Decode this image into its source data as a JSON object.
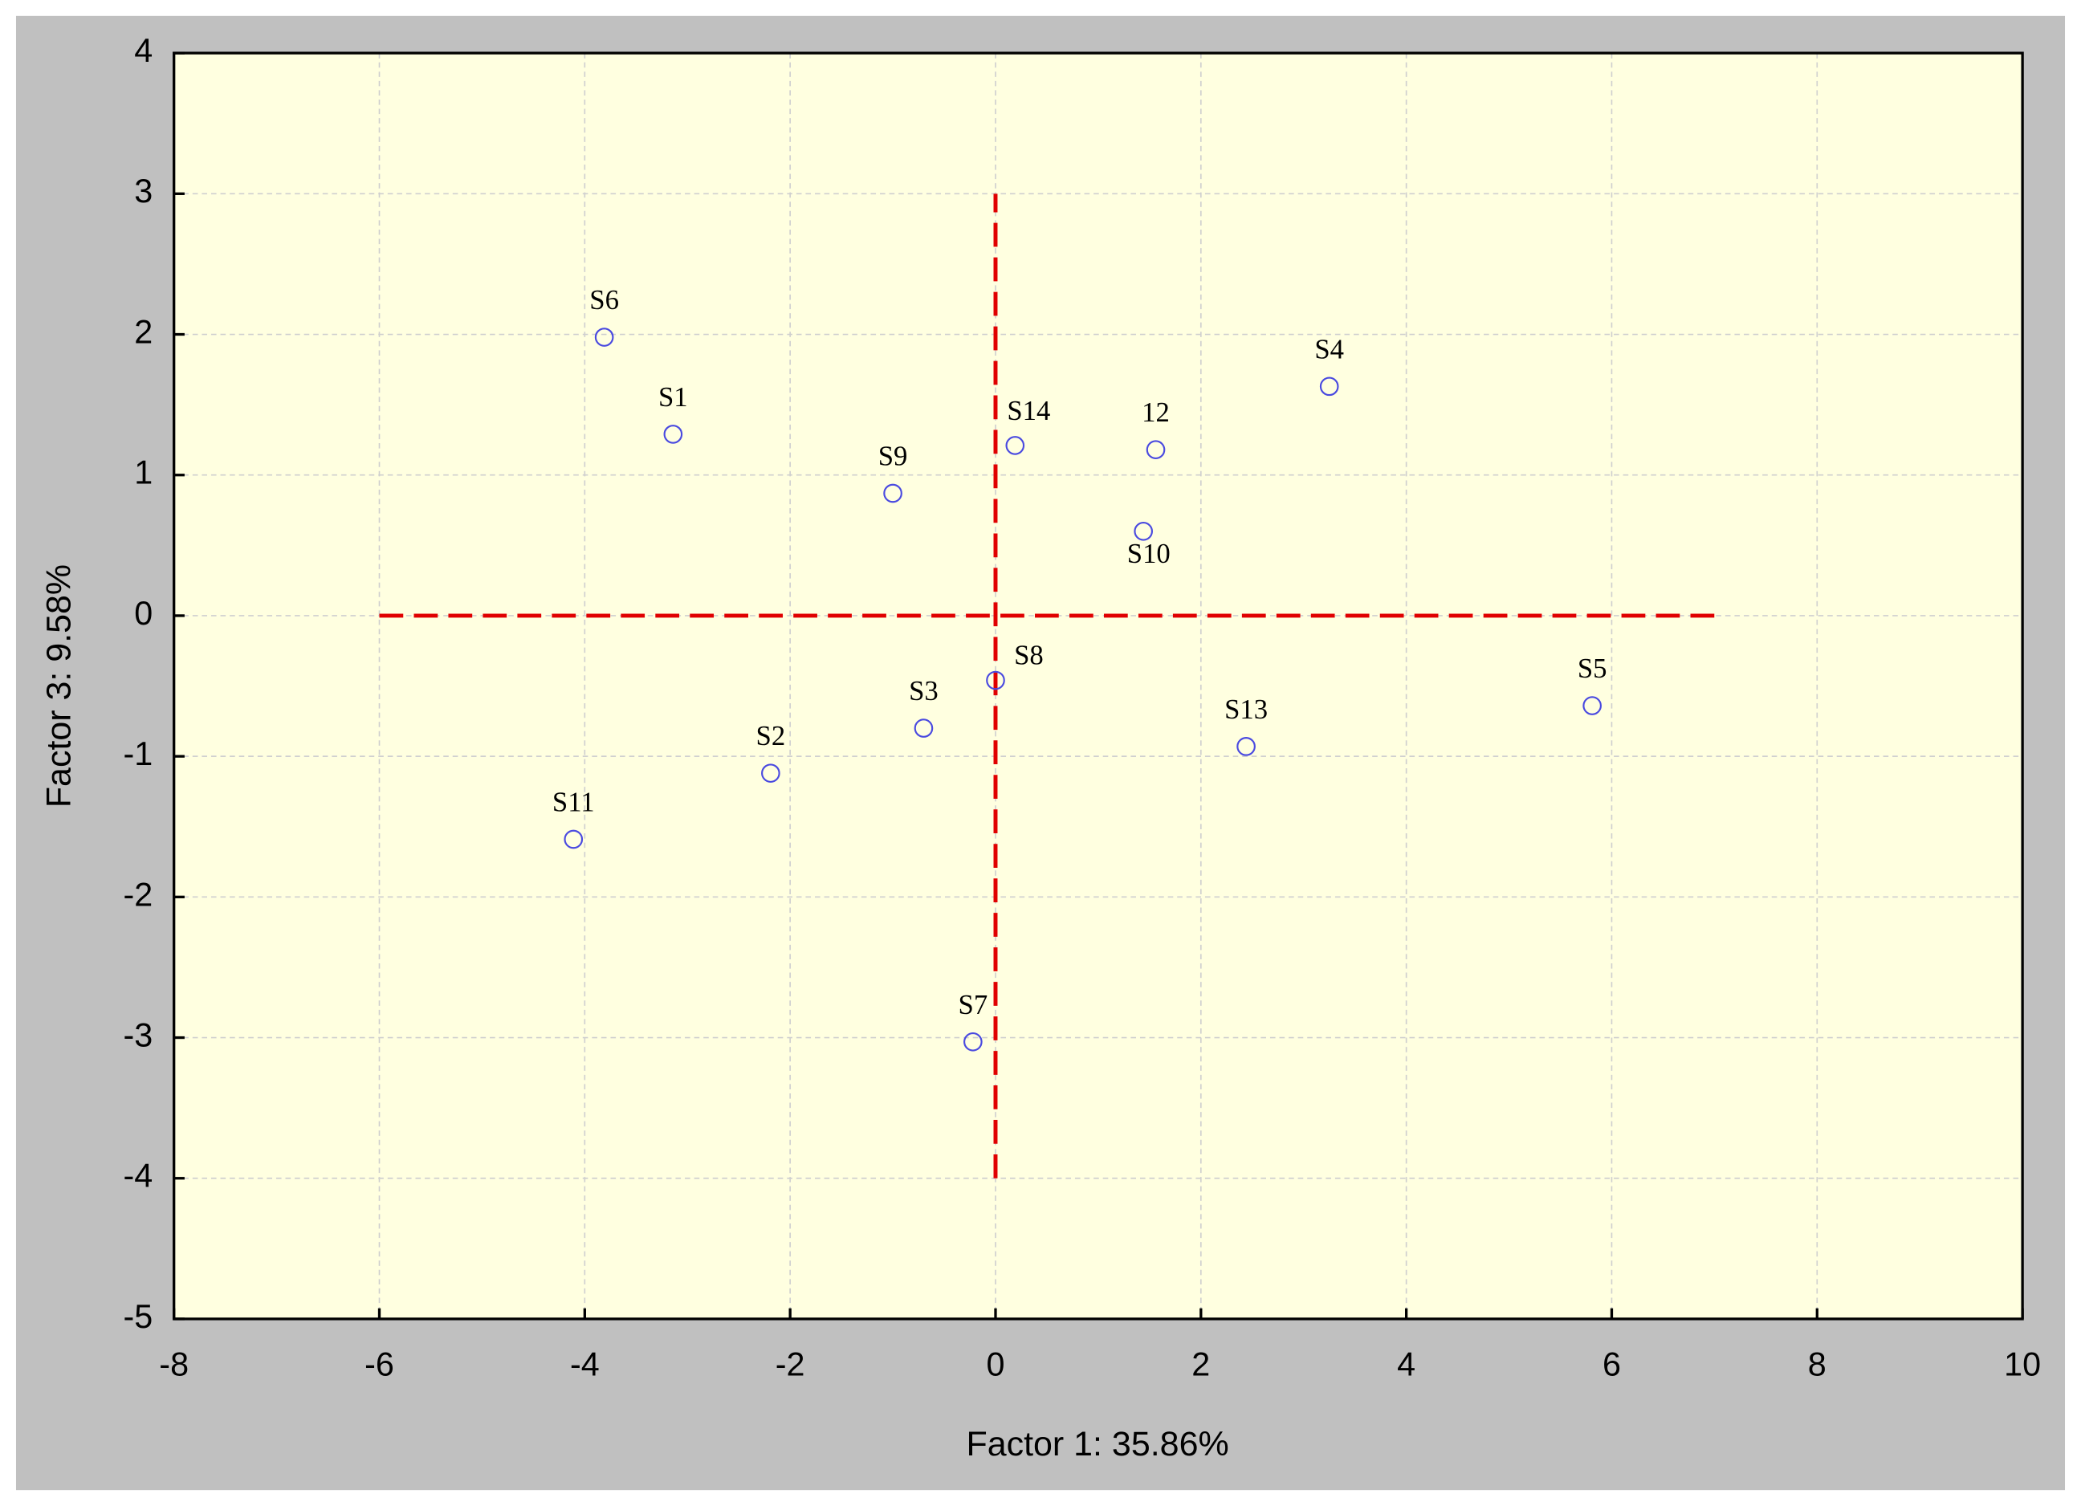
{
  "chart_data": {
    "type": "scatter",
    "x_label": "Factor 1: 35.86%",
    "y_label": "Factor 3:  9.58%",
    "xlim": [
      -8,
      10
    ],
    "ylim": [
      -5,
      4
    ],
    "xticks": [
      -8,
      -6,
      -4,
      -2,
      0,
      2,
      4,
      6,
      8,
      10
    ],
    "yticks": [
      -5,
      -4,
      -3,
      -2,
      -1,
      0,
      1,
      2,
      3,
      4
    ],
    "grid": true,
    "color": "#4a4ae0",
    "labels": [
      "S6",
      "S1",
      "S9",
      "S14",
      "12",
      "S4",
      "S10",
      "S8",
      "S3",
      "S2",
      "S11",
      "S13",
      "S5",
      "S7"
    ],
    "x": [
      -3.81,
      -3.14,
      -1.0,
      0.19,
      1.56,
      3.25,
      1.44,
      0.0,
      -0.7,
      -2.19,
      -4.11,
      2.44,
      5.81,
      -0.22
    ],
    "y": [
      1.98,
      1.29,
      0.87,
      1.21,
      1.18,
      1.63,
      0.6,
      -0.46,
      -0.8,
      -1.12,
      -1.59,
      -0.93,
      -0.64,
      -3.03
    ],
    "reference_lines": [
      {
        "axis": "y",
        "value": 0,
        "from": -6,
        "to": 7,
        "color": "#e00000"
      },
      {
        "axis": "x",
        "value": 0,
        "from": -4,
        "to": 3,
        "color": "#e00000"
      }
    ]
  }
}
